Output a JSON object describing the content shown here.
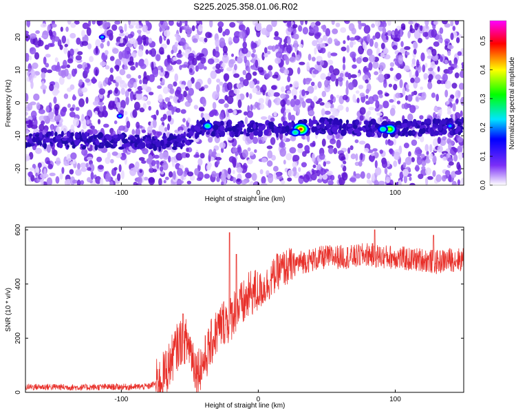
{
  "title": "S225.2025.358.01.06.R02",
  "chart_data": [
    {
      "type": "heatmap",
      "xlabel": "Height of straight line (km)",
      "ylabel": "Frequency (Hz)",
      "xlim": [
        -170,
        150
      ],
      "ylim": [
        -25,
        25
      ],
      "xticks": [
        -100,
        0,
        100
      ],
      "yticks": [
        -20,
        -10,
        0,
        10,
        20
      ],
      "colorbar": {
        "label": "Normalized spectral amplitude",
        "range": [
          0,
          0.57
        ],
        "ticks": [
          "0.0",
          "0.1",
          "0.2",
          "0.3",
          "0.4",
          "0.5"
        ],
        "colors": [
          "#ffffff",
          "#7b2ff7",
          "#0000ff",
          "#00e5ff",
          "#00ff00",
          "#ffff00",
          "#ff0000",
          "#ff00ff"
        ]
      },
      "ridge": [
        {
          "x": -170,
          "f": -11
        },
        {
          "x": -80,
          "f": -12
        },
        {
          "x": -55,
          "f": -12
        },
        {
          "x": -42,
          "f": -7
        },
        {
          "x": -30,
          "f": -8
        },
        {
          "x": 0,
          "f": -8
        },
        {
          "x": 50,
          "f": -7
        },
        {
          "x": 100,
          "f": -8
        },
        {
          "x": 150,
          "f": -7
        }
      ],
      "peaks": [
        {
          "x": 31,
          "f": -8,
          "value": 0.55
        },
        {
          "x": 96,
          "f": -8,
          "value": 0.48
        },
        {
          "x": -37,
          "f": -7,
          "value": 0.35
        },
        {
          "x": 27,
          "f": -9,
          "value": 0.3
        },
        {
          "x": 91,
          "f": -8,
          "value": 0.3
        },
        {
          "x": 140,
          "f": -7,
          "value": 0.25
        },
        {
          "x": -114,
          "f": 20,
          "value": 0.2
        },
        {
          "x": -101,
          "f": -4,
          "value": 0.2
        }
      ]
    },
    {
      "type": "line",
      "xlabel": "Height of straight line (km)",
      "ylabel": "SNR (10 * v/v)",
      "xlim": [
        -170,
        150
      ],
      "ylim": [
        0,
        610
      ],
      "xticks": [
        -100,
        0,
        100
      ],
      "yticks": [
        0,
        200,
        400,
        600
      ],
      "color": "#e8302a",
      "x": [
        -170,
        -150,
        -130,
        -110,
        -90,
        -80,
        -72,
        -66,
        -60,
        -55,
        -50,
        -45,
        -40,
        -36,
        -32,
        -28,
        -24,
        -21,
        -18,
        -15,
        -10,
        -5,
        0,
        5,
        10,
        15,
        20,
        25,
        30,
        40,
        50,
        60,
        70,
        80,
        90,
        100,
        110,
        120,
        130,
        140,
        150
      ],
      "y": [
        20,
        20,
        18,
        20,
        20,
        22,
        40,
        90,
        160,
        200,
        170,
        80,
        110,
        160,
        210,
        240,
        270,
        260,
        300,
        310,
        330,
        370,
        370,
        390,
        420,
        450,
        460,
        470,
        480,
        490,
        500,
        500,
        500,
        510,
        500,
        500,
        490,
        490,
        480,
        490,
        490
      ],
      "spikes": [
        {
          "x": -21,
          "y": 590
        },
        {
          "x": -16,
          "y": 510
        },
        {
          "x": -55,
          "y": 290
        },
        {
          "x": 85,
          "y": 600
        },
        {
          "x": 128,
          "y": 580
        }
      ]
    }
  ]
}
